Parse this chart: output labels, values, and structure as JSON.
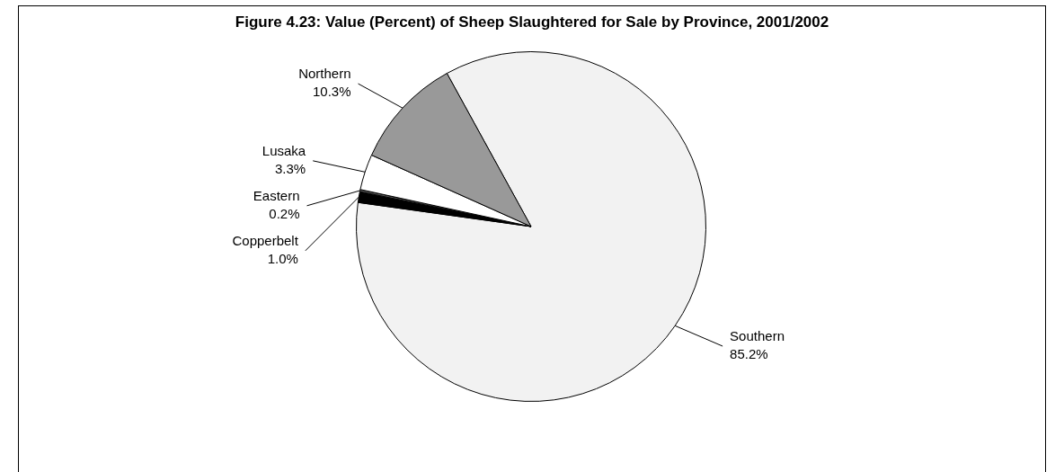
{
  "chart_data": {
    "type": "pie",
    "title": "Figure 4.23: Value (Percent) of Sheep Slaughtered for Sale by Province, 2001/2002",
    "categories": [
      "Southern",
      "Copperbelt",
      "Eastern",
      "Lusaka",
      "Northern"
    ],
    "values": [
      85.2,
      1.0,
      0.2,
      3.3,
      10.3
    ],
    "value_labels": [
      "85.2%",
      "1.0%",
      "0.2%",
      "3.3%",
      "10.3%"
    ],
    "colors": [
      "#f2f2f2",
      "#000000",
      "#555555",
      "#ffffff",
      "#999999"
    ],
    "legend": false
  }
}
